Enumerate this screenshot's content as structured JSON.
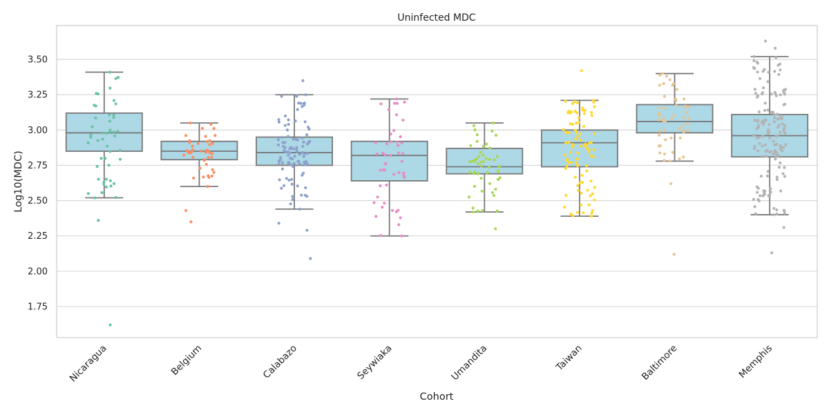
{
  "chart_data": {
    "type": "box",
    "title": "Uninfected MDC",
    "xlabel": "Cohort",
    "ylabel": "Log10(MDC)",
    "ylim": [
      1.53,
      3.74
    ],
    "yticks": [
      "1.75",
      "2.00",
      "2.25",
      "2.50",
      "2.75",
      "3.00",
      "3.25",
      "3.50"
    ],
    "grid": "horizontal",
    "box_color": "#add8e6",
    "box_edge_color": "#777777",
    "categories": [
      "Nicaragua",
      "Belgium",
      "Calabazo",
      "Seywiaka",
      "Umandita",
      "Taiwan",
      "Baltimore",
      "Memphis"
    ],
    "point_colors": [
      "#66c2a5",
      "#fc8d62",
      "#8da0cb",
      "#e78ac3",
      "#a6d854",
      "#ffd92f",
      "#e5c494",
      "#b3b3b3"
    ],
    "boxes": [
      {
        "whisker_low": 2.52,
        "q1": 2.85,
        "median": 2.98,
        "q3": 3.12,
        "whisker_high": 3.41,
        "outliers": [
          2.36,
          1.62
        ]
      },
      {
        "whisker_low": 2.6,
        "q1": 2.79,
        "median": 2.85,
        "q3": 2.92,
        "whisker_high": 3.05,
        "outliers": [
          2.43,
          2.35
        ]
      },
      {
        "whisker_low": 2.44,
        "q1": 2.75,
        "median": 2.84,
        "q3": 2.95,
        "whisker_high": 3.25,
        "outliers": [
          2.34,
          2.29,
          2.09,
          3.35
        ]
      },
      {
        "whisker_low": 2.25,
        "q1": 2.64,
        "median": 2.82,
        "q3": 2.92,
        "whisker_high": 3.22,
        "outliers": []
      },
      {
        "whisker_low": 2.42,
        "q1": 2.69,
        "median": 2.74,
        "q3": 2.87,
        "whisker_high": 3.05,
        "outliers": [
          2.3
        ]
      },
      {
        "whisker_low": 2.39,
        "q1": 2.74,
        "median": 2.91,
        "q3": 3.0,
        "whisker_high": 3.21,
        "outliers": [
          3.42
        ]
      },
      {
        "whisker_low": 2.78,
        "q1": 2.98,
        "median": 3.06,
        "q3": 3.18,
        "whisker_high": 3.4,
        "outliers": [
          2.62,
          2.12
        ]
      },
      {
        "whisker_low": 2.4,
        "q1": 2.81,
        "median": 2.96,
        "q3": 3.11,
        "whisker_high": 3.52,
        "outliers": [
          2.31,
          2.13,
          3.58,
          3.63
        ]
      }
    ],
    "point_counts": [
      45,
      40,
      95,
      45,
      50,
      90,
      50,
      150
    ]
  }
}
